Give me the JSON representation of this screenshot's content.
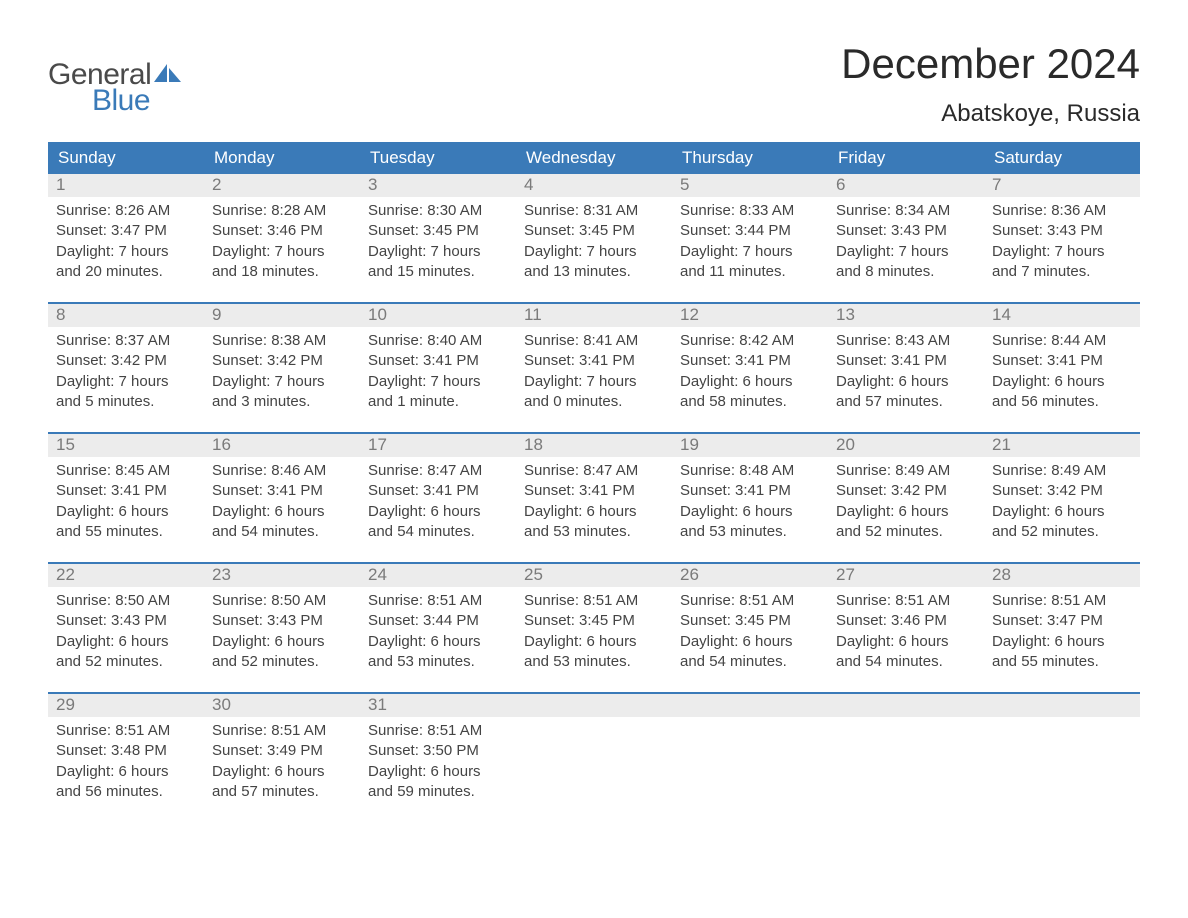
{
  "logo": {
    "text_general": "General",
    "text_blue": "Blue",
    "general_color": "#4a4a4a",
    "blue_color": "#3a7ab8"
  },
  "header": {
    "month_title": "December 2024",
    "location": "Abatskoye, Russia"
  },
  "colors": {
    "header_bg": "#3a7ab8",
    "header_text": "#ffffff",
    "daynum_bg": "#ececec",
    "daynum_text": "#7a7a7a",
    "body_text": "#444444",
    "week_border": "#3a7ab8",
    "page_bg": "#ffffff"
  },
  "fonts": {
    "month_title_pt": 42,
    "location_pt": 24,
    "weekday_pt": 17,
    "daynum_pt": 17,
    "body_pt": 15
  },
  "weekdays": [
    "Sunday",
    "Monday",
    "Tuesday",
    "Wednesday",
    "Thursday",
    "Friday",
    "Saturday"
  ],
  "weeks": [
    [
      {
        "num": "1",
        "sunrise": "Sunrise: 8:26 AM",
        "sunset": "Sunset: 3:47 PM",
        "day1": "Daylight: 7 hours",
        "day2": "and 20 minutes."
      },
      {
        "num": "2",
        "sunrise": "Sunrise: 8:28 AM",
        "sunset": "Sunset: 3:46 PM",
        "day1": "Daylight: 7 hours",
        "day2": "and 18 minutes."
      },
      {
        "num": "3",
        "sunrise": "Sunrise: 8:30 AM",
        "sunset": "Sunset: 3:45 PM",
        "day1": "Daylight: 7 hours",
        "day2": "and 15 minutes."
      },
      {
        "num": "4",
        "sunrise": "Sunrise: 8:31 AM",
        "sunset": "Sunset: 3:45 PM",
        "day1": "Daylight: 7 hours",
        "day2": "and 13 minutes."
      },
      {
        "num": "5",
        "sunrise": "Sunrise: 8:33 AM",
        "sunset": "Sunset: 3:44 PM",
        "day1": "Daylight: 7 hours",
        "day2": "and 11 minutes."
      },
      {
        "num": "6",
        "sunrise": "Sunrise: 8:34 AM",
        "sunset": "Sunset: 3:43 PM",
        "day1": "Daylight: 7 hours",
        "day2": "and 8 minutes."
      },
      {
        "num": "7",
        "sunrise": "Sunrise: 8:36 AM",
        "sunset": "Sunset: 3:43 PM",
        "day1": "Daylight: 7 hours",
        "day2": "and 7 minutes."
      }
    ],
    [
      {
        "num": "8",
        "sunrise": "Sunrise: 8:37 AM",
        "sunset": "Sunset: 3:42 PM",
        "day1": "Daylight: 7 hours",
        "day2": "and 5 minutes."
      },
      {
        "num": "9",
        "sunrise": "Sunrise: 8:38 AM",
        "sunset": "Sunset: 3:42 PM",
        "day1": "Daylight: 7 hours",
        "day2": "and 3 minutes."
      },
      {
        "num": "10",
        "sunrise": "Sunrise: 8:40 AM",
        "sunset": "Sunset: 3:41 PM",
        "day1": "Daylight: 7 hours",
        "day2": "and 1 minute."
      },
      {
        "num": "11",
        "sunrise": "Sunrise: 8:41 AM",
        "sunset": "Sunset: 3:41 PM",
        "day1": "Daylight: 7 hours",
        "day2": "and 0 minutes."
      },
      {
        "num": "12",
        "sunrise": "Sunrise: 8:42 AM",
        "sunset": "Sunset: 3:41 PM",
        "day1": "Daylight: 6 hours",
        "day2": "and 58 minutes."
      },
      {
        "num": "13",
        "sunrise": "Sunrise: 8:43 AM",
        "sunset": "Sunset: 3:41 PM",
        "day1": "Daylight: 6 hours",
        "day2": "and 57 minutes."
      },
      {
        "num": "14",
        "sunrise": "Sunrise: 8:44 AM",
        "sunset": "Sunset: 3:41 PM",
        "day1": "Daylight: 6 hours",
        "day2": "and 56 minutes."
      }
    ],
    [
      {
        "num": "15",
        "sunrise": "Sunrise: 8:45 AM",
        "sunset": "Sunset: 3:41 PM",
        "day1": "Daylight: 6 hours",
        "day2": "and 55 minutes."
      },
      {
        "num": "16",
        "sunrise": "Sunrise: 8:46 AM",
        "sunset": "Sunset: 3:41 PM",
        "day1": "Daylight: 6 hours",
        "day2": "and 54 minutes."
      },
      {
        "num": "17",
        "sunrise": "Sunrise: 8:47 AM",
        "sunset": "Sunset: 3:41 PM",
        "day1": "Daylight: 6 hours",
        "day2": "and 54 minutes."
      },
      {
        "num": "18",
        "sunrise": "Sunrise: 8:47 AM",
        "sunset": "Sunset: 3:41 PM",
        "day1": "Daylight: 6 hours",
        "day2": "and 53 minutes."
      },
      {
        "num": "19",
        "sunrise": "Sunrise: 8:48 AM",
        "sunset": "Sunset: 3:41 PM",
        "day1": "Daylight: 6 hours",
        "day2": "and 53 minutes."
      },
      {
        "num": "20",
        "sunrise": "Sunrise: 8:49 AM",
        "sunset": "Sunset: 3:42 PM",
        "day1": "Daylight: 6 hours",
        "day2": "and 52 minutes."
      },
      {
        "num": "21",
        "sunrise": "Sunrise: 8:49 AM",
        "sunset": "Sunset: 3:42 PM",
        "day1": "Daylight: 6 hours",
        "day2": "and 52 minutes."
      }
    ],
    [
      {
        "num": "22",
        "sunrise": "Sunrise: 8:50 AM",
        "sunset": "Sunset: 3:43 PM",
        "day1": "Daylight: 6 hours",
        "day2": "and 52 minutes."
      },
      {
        "num": "23",
        "sunrise": "Sunrise: 8:50 AM",
        "sunset": "Sunset: 3:43 PM",
        "day1": "Daylight: 6 hours",
        "day2": "and 52 minutes."
      },
      {
        "num": "24",
        "sunrise": "Sunrise: 8:51 AM",
        "sunset": "Sunset: 3:44 PM",
        "day1": "Daylight: 6 hours",
        "day2": "and 53 minutes."
      },
      {
        "num": "25",
        "sunrise": "Sunrise: 8:51 AM",
        "sunset": "Sunset: 3:45 PM",
        "day1": "Daylight: 6 hours",
        "day2": "and 53 minutes."
      },
      {
        "num": "26",
        "sunrise": "Sunrise: 8:51 AM",
        "sunset": "Sunset: 3:45 PM",
        "day1": "Daylight: 6 hours",
        "day2": "and 54 minutes."
      },
      {
        "num": "27",
        "sunrise": "Sunrise: 8:51 AM",
        "sunset": "Sunset: 3:46 PM",
        "day1": "Daylight: 6 hours",
        "day2": "and 54 minutes."
      },
      {
        "num": "28",
        "sunrise": "Sunrise: 8:51 AM",
        "sunset": "Sunset: 3:47 PM",
        "day1": "Daylight: 6 hours",
        "day2": "and 55 minutes."
      }
    ],
    [
      {
        "num": "29",
        "sunrise": "Sunrise: 8:51 AM",
        "sunset": "Sunset: 3:48 PM",
        "day1": "Daylight: 6 hours",
        "day2": "and 56 minutes."
      },
      {
        "num": "30",
        "sunrise": "Sunrise: 8:51 AM",
        "sunset": "Sunset: 3:49 PM",
        "day1": "Daylight: 6 hours",
        "day2": "and 57 minutes."
      },
      {
        "num": "31",
        "sunrise": "Sunrise: 8:51 AM",
        "sunset": "Sunset: 3:50 PM",
        "day1": "Daylight: 6 hours",
        "day2": "and 59 minutes."
      },
      {
        "empty": true
      },
      {
        "empty": true
      },
      {
        "empty": true
      },
      {
        "empty": true
      }
    ]
  ]
}
